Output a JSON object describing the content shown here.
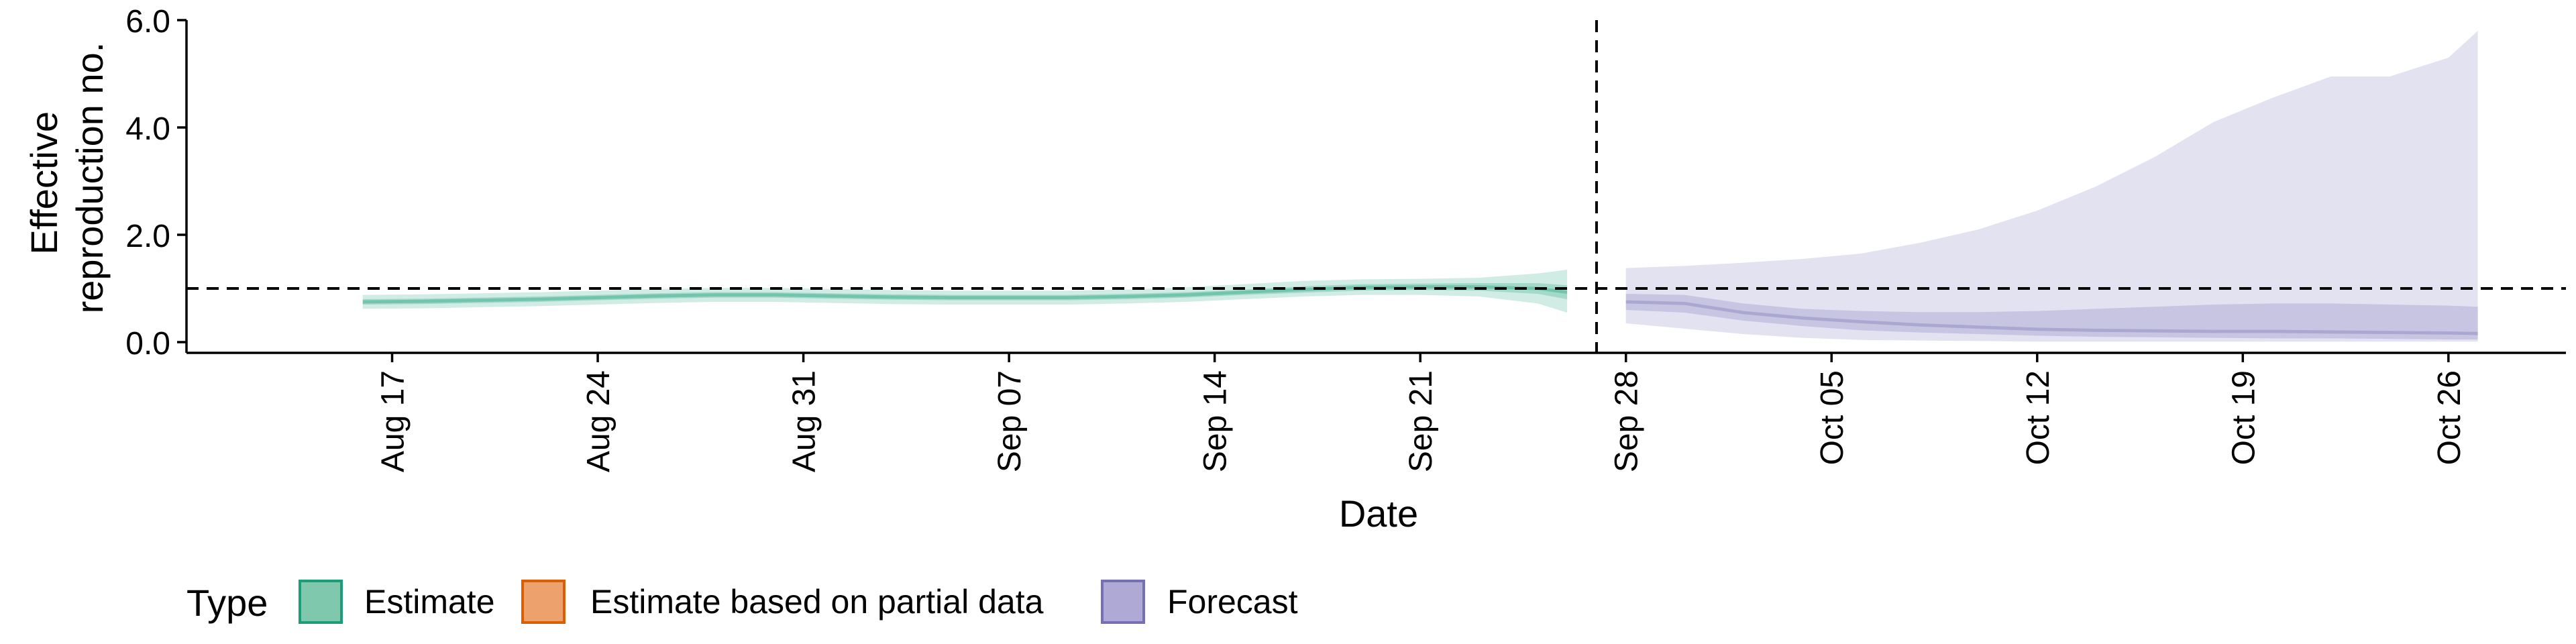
{
  "chart_data": {
    "type": "area",
    "xlabel": "Date",
    "ylabel": [
      "Effective",
      "reproduction no."
    ],
    "ylim": [
      -0.2,
      6.0
    ],
    "yticks": [
      0.0,
      2.0,
      4.0,
      6.0
    ],
    "ytick_labels": [
      "0.0",
      "2.0",
      "4.0",
      "6.0"
    ],
    "xlim": [
      "2020-08-10",
      "2020-10-30"
    ],
    "xticks": [
      "2020-08-17",
      "2020-08-24",
      "2020-08-31",
      "2020-09-07",
      "2020-09-14",
      "2020-09-21",
      "2020-09-28",
      "2020-10-05",
      "2020-10-12",
      "2020-10-19",
      "2020-10-26"
    ],
    "xtick_labels": [
      "Aug 17",
      "Aug 24",
      "Aug 31",
      "Sep 07",
      "Sep 14",
      "Sep 21",
      "Sep 28",
      "Oct 05",
      "Oct 12",
      "Oct 19",
      "Oct 26"
    ],
    "reference_line_y": 1.0,
    "forecast_date_line": "2020-09-27",
    "legend": {
      "title": "Type",
      "position": "bottom",
      "entries": [
        {
          "label": "Estimate",
          "fill": "#7fc8ad",
          "stroke": "#1b9e77"
        },
        {
          "label": "Estimate based on partial data",
          "fill": "#eda26d",
          "stroke": "#d95f02"
        },
        {
          "label": "Forecast",
          "fill": "#aeaad5",
          "stroke": "#7570b3"
        }
      ]
    },
    "series": [
      {
        "name": "Estimate",
        "color": "#1b9e77",
        "x": [
          "2020-08-16",
          "2020-08-18",
          "2020-08-20",
          "2020-08-22",
          "2020-08-24",
          "2020-08-26",
          "2020-08-28",
          "2020-08-30",
          "2020-09-01",
          "2020-09-03",
          "2020-09-05",
          "2020-09-07",
          "2020-09-09",
          "2020-09-11",
          "2020-09-13",
          "2020-09-15",
          "2020-09-17",
          "2020-09-19",
          "2020-09-21",
          "2020-09-23",
          "2020-09-25",
          "2020-09-26"
        ],
        "median": [
          0.75,
          0.76,
          0.78,
          0.8,
          0.83,
          0.86,
          0.88,
          0.88,
          0.86,
          0.84,
          0.83,
          0.83,
          0.83,
          0.85,
          0.88,
          0.93,
          0.98,
          1.02,
          1.03,
          1.03,
          1.0,
          0.93
        ],
        "lower_50": [
          0.7,
          0.71,
          0.73,
          0.75,
          0.78,
          0.81,
          0.83,
          0.83,
          0.81,
          0.79,
          0.78,
          0.78,
          0.78,
          0.8,
          0.83,
          0.88,
          0.92,
          0.96,
          0.97,
          0.96,
          0.9,
          0.8
        ],
        "upper_50": [
          0.8,
          0.81,
          0.83,
          0.85,
          0.88,
          0.91,
          0.93,
          0.93,
          0.91,
          0.89,
          0.88,
          0.88,
          0.88,
          0.9,
          0.93,
          0.98,
          1.04,
          1.08,
          1.09,
          1.1,
          1.1,
          1.06
        ],
        "lower_90": [
          0.62,
          0.63,
          0.65,
          0.67,
          0.7,
          0.73,
          0.75,
          0.75,
          0.73,
          0.71,
          0.7,
          0.7,
          0.7,
          0.72,
          0.75,
          0.8,
          0.85,
          0.88,
          0.88,
          0.85,
          0.72,
          0.55
        ],
        "upper_90": [
          0.88,
          0.89,
          0.91,
          0.93,
          0.96,
          0.99,
          1.01,
          1.01,
          0.99,
          0.97,
          0.96,
          0.96,
          0.96,
          0.98,
          1.02,
          1.08,
          1.14,
          1.17,
          1.18,
          1.2,
          1.28,
          1.35
        ]
      },
      {
        "name": "Forecast",
        "color": "#7570b3",
        "x": [
          "2020-09-28",
          "2020-09-30",
          "2020-10-02",
          "2020-10-04",
          "2020-10-06",
          "2020-10-08",
          "2020-10-10",
          "2020-10-12",
          "2020-10-14",
          "2020-10-16",
          "2020-10-18",
          "2020-10-20",
          "2020-10-22",
          "2020-10-24",
          "2020-10-26",
          "2020-10-27"
        ],
        "median": [
          0.75,
          0.72,
          0.55,
          0.45,
          0.38,
          0.32,
          0.28,
          0.24,
          0.22,
          0.21,
          0.2,
          0.2,
          0.19,
          0.18,
          0.17,
          0.16
        ],
        "lower_50": [
          0.6,
          0.55,
          0.4,
          0.3,
          0.22,
          0.18,
          0.15,
          0.12,
          0.1,
          0.09,
          0.08,
          0.07,
          0.07,
          0.06,
          0.05,
          0.05
        ],
        "upper_50": [
          0.9,
          0.88,
          0.72,
          0.62,
          0.58,
          0.56,
          0.56,
          0.58,
          0.62,
          0.66,
          0.7,
          0.72,
          0.72,
          0.7,
          0.68,
          0.66
        ],
        "lower_90": [
          0.35,
          0.25,
          0.15,
          0.08,
          0.04,
          0.03,
          0.02,
          0.01,
          0.01,
          0.01,
          0.01,
          0.01,
          0.01,
          0.01,
          0.01,
          0.01
        ],
        "upper_90": [
          1.38,
          1.42,
          1.48,
          1.55,
          1.65,
          1.85,
          2.1,
          2.45,
          2.9,
          3.45,
          4.1,
          4.55,
          4.95,
          4.95,
          5.3,
          5.8
        ]
      }
    ]
  }
}
